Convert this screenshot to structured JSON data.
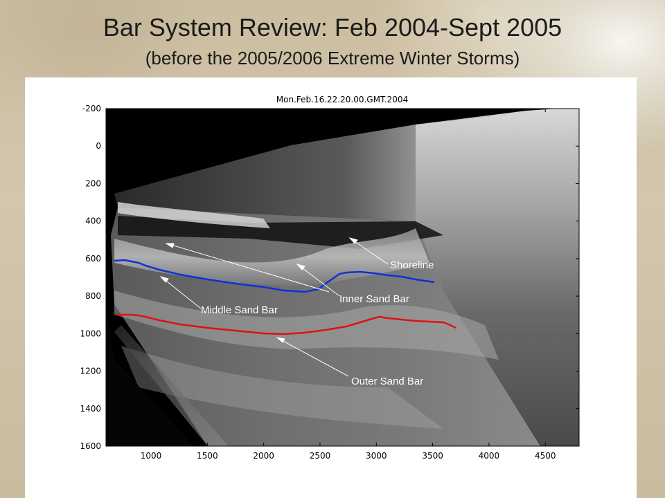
{
  "slide": {
    "title": "Bar System Review: Feb 2004-Sept 2005",
    "subtitle": "(before the 2005/2006 Extreme Winter Storms)"
  },
  "figure": {
    "plot_title": "Mon.Feb.16.22.20.00.GMT.2004",
    "x_ticks": [
      "1000",
      "1500",
      "2000",
      "2500",
      "3000",
      "3500",
      "4000",
      "4500"
    ],
    "y_ticks": [
      "-200",
      "0",
      "200",
      "400",
      "600",
      "800",
      "1000",
      "1200",
      "1400",
      "1600"
    ],
    "xlim": [
      600,
      4800
    ],
    "ylim": [
      -200,
      1600
    ],
    "annotations": {
      "shoreline": "Shoreline",
      "inner": "Inner Sand Bar",
      "middle": "Middle Sand Bar",
      "outer": "Outer Sand Bar"
    },
    "colors": {
      "blue_line": "#1030d8",
      "red_line": "#e01010",
      "annotation_text": "#ffffff"
    }
  }
}
